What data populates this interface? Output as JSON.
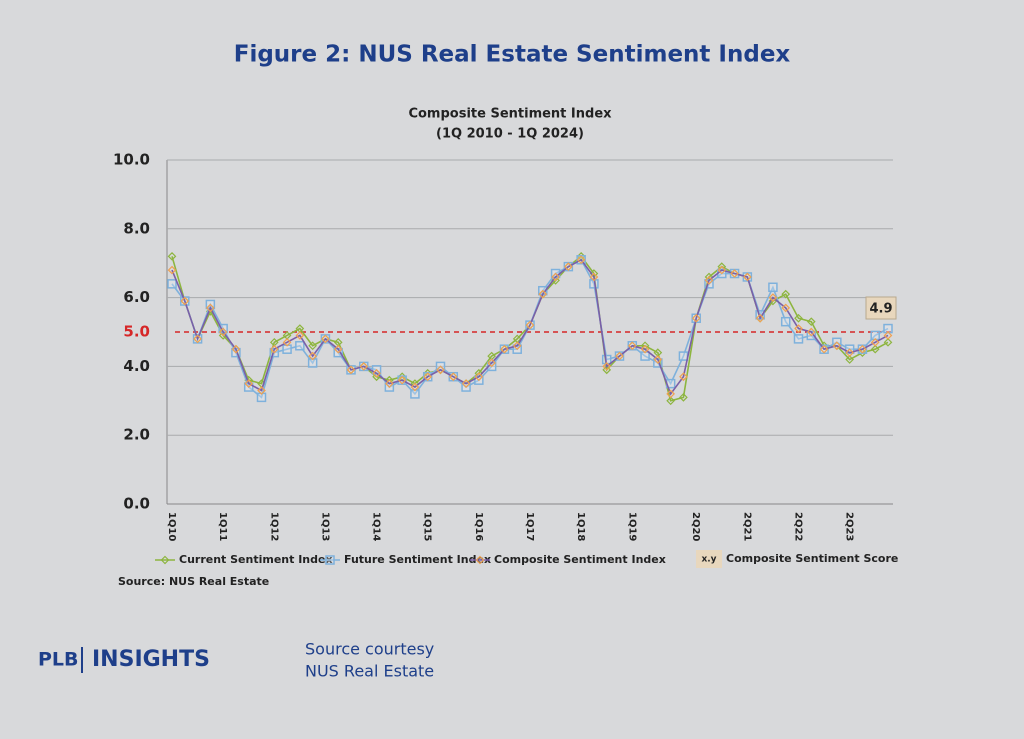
{
  "header": {
    "title": "Figure 2: NUS Real Estate Sentiment Index"
  },
  "chart_data": {
    "type": "line",
    "title": "Composite Sentiment Index",
    "subtitle": "(1Q 2010 - 1Q 2024)",
    "categories": [
      "1Q10",
      null,
      null,
      null,
      "1Q11",
      null,
      null,
      null,
      "1Q12",
      null,
      null,
      null,
      "1Q13",
      null,
      null,
      null,
      "1Q14",
      null,
      null,
      null,
      "1Q15",
      null,
      null,
      null,
      "1Q16",
      null,
      null,
      null,
      "1Q17",
      null,
      null,
      null,
      "1Q18",
      null,
      null,
      null,
      "1Q19",
      null,
      null,
      null,
      null,
      "2Q20",
      null,
      null,
      null,
      "2Q21",
      null,
      null,
      null,
      "2Q22",
      null,
      null,
      null,
      "2Q23",
      null,
      null,
      null
    ],
    "series": [
      {
        "name": "Current Sentiment Index",
        "color": "#8db53f",
        "marker": "diamond",
        "values": [
          7.2,
          5.9,
          4.8,
          5.6,
          4.9,
          4.5,
          3.6,
          3.5,
          4.7,
          4.9,
          5.1,
          4.6,
          4.8,
          4.7,
          3.9,
          4.0,
          3.7,
          3.6,
          3.7,
          3.5,
          3.8,
          3.9,
          3.7,
          3.5,
          3.8,
          4.3,
          4.5,
          4.8,
          5.2,
          6.1,
          6.5,
          6.9,
          7.2,
          6.7,
          3.9,
          4.3,
          4.6,
          4.6,
          4.4,
          3.0,
          3.1,
          5.4,
          6.6,
          6.9,
          6.7,
          6.6,
          5.4,
          5.9,
          6.1,
          5.4,
          5.3,
          4.6,
          4.6,
          4.2,
          4.4,
          4.5,
          4.7
        ]
      },
      {
        "name": "Future Sentiment Index",
        "color": "#7eb1dc",
        "marker": "square",
        "values": [
          6.4,
          5.9,
          4.8,
          5.8,
          5.1,
          4.4,
          3.4,
          3.1,
          4.4,
          4.5,
          4.6,
          4.1,
          4.8,
          4.4,
          3.9,
          4.0,
          3.9,
          3.4,
          3.6,
          3.2,
          3.7,
          4.0,
          3.7,
          3.4,
          3.6,
          4.0,
          4.5,
          4.5,
          5.2,
          6.2,
          6.7,
          6.9,
          7.1,
          6.4,
          4.2,
          4.3,
          4.6,
          4.3,
          4.1,
          3.5,
          4.3,
          5.4,
          6.4,
          6.7,
          6.7,
          6.6,
          5.5,
          6.3,
          5.3,
          4.8,
          4.9,
          4.5,
          4.7,
          4.5,
          4.5,
          4.9,
          5.1
        ]
      },
      {
        "name": "Composite Sentiment Index",
        "color": "#7a5fa8",
        "marker": "diamond",
        "marker_color": "#f0a050",
        "values": [
          6.8,
          5.9,
          4.8,
          5.7,
          5.0,
          4.5,
          3.5,
          3.3,
          4.5,
          4.7,
          4.9,
          4.3,
          4.8,
          4.5,
          3.9,
          4.0,
          3.8,
          3.5,
          3.6,
          3.4,
          3.7,
          3.9,
          3.7,
          3.5,
          3.7,
          4.1,
          4.5,
          4.6,
          5.2,
          6.1,
          6.6,
          6.9,
          7.1,
          6.6,
          4.0,
          4.3,
          4.6,
          4.5,
          4.2,
          3.2,
          3.7,
          5.4,
          6.5,
          6.8,
          6.7,
          6.6,
          5.4,
          6.0,
          5.7,
          5.1,
          5.0,
          4.5,
          4.6,
          4.4,
          4.5,
          4.7,
          4.9
        ]
      }
    ],
    "ylim": [
      0,
      10
    ],
    "yticks": [
      {
        "value": 0,
        "label": "0.0"
      },
      {
        "value": 2,
        "label": "2.0"
      },
      {
        "value": 4,
        "label": "4.0"
      },
      {
        "value": 6,
        "label": "6.0"
      },
      {
        "value": 8,
        "label": "8.0"
      },
      {
        "value": 10,
        "label": "10.0"
      }
    ],
    "grid": true,
    "reference_line": {
      "value": 5,
      "label": "5.0",
      "color": "#d62728"
    },
    "annotation": 4.9,
    "legend_extra": {
      "symbol": "x.y",
      "label": "Composite Sentiment Score"
    },
    "source": "Source: NUS Real Estate"
  },
  "footer": {
    "brand_left": "PLB",
    "brand_right": "INSIGHTS",
    "credit_line1": "Source courtesy",
    "credit_line2": "NUS Real Estate"
  }
}
